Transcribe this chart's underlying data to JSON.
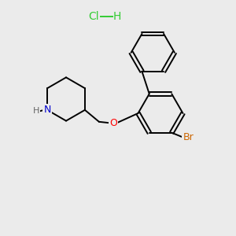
{
  "background_color": "#ebebeb",
  "bond_color": "#000000",
  "atom_colors": {
    "N": "#0000cc",
    "H_on_N": "#666666",
    "O": "#ff0000",
    "Br": "#cc6600",
    "Cl": "#33cc33",
    "H_hcl": "#33cc33"
  },
  "figsize": [
    3.0,
    3.0
  ],
  "dpi": 100
}
